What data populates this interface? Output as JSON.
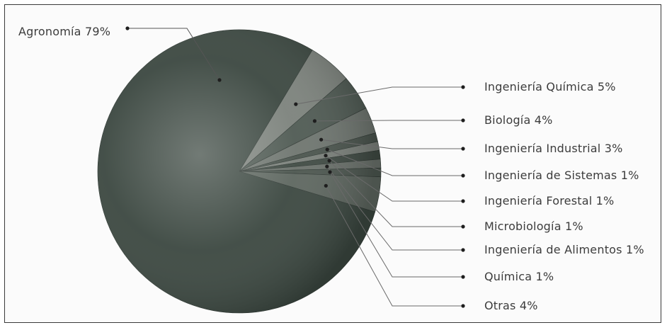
{
  "chart_data": {
    "type": "pie",
    "title": "",
    "slices": [
      {
        "label": "Agronomía 79%",
        "value": 79,
        "color": "#3b4740"
      },
      {
        "label": "Ingeniería Química 5%",
        "value": 5,
        "color": "#7c827c"
      },
      {
        "label": "Biología 4%",
        "value": 4,
        "color": "#4f5a53"
      },
      {
        "label": "Ingeniería Industrial 3%",
        "value": 3,
        "color": "#6e756f"
      },
      {
        "label": "Ingeniería de Sistemas 1%",
        "value": 1,
        "color": "#4a544d"
      },
      {
        "label": "Ingeniería Forestal 1%",
        "value": 1,
        "color": "#7a807a"
      },
      {
        "label": "Microbiología 1%",
        "value": 1,
        "color": "#3f4a43"
      },
      {
        "label": "Ingeniería de Alimentos 1%",
        "value": 1,
        "color": "#6a716b"
      },
      {
        "label": "Química 1%",
        "value": 1,
        "color": "#4c564f"
      },
      {
        "label": "Otras 4%",
        "value": 4,
        "color": "#5d665f"
      }
    ],
    "legend": "right",
    "grid": false
  }
}
